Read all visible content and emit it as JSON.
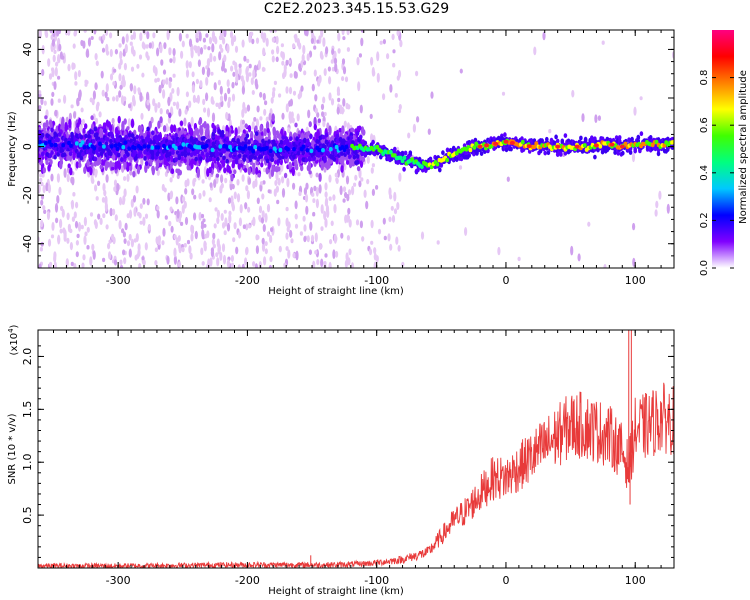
{
  "figure": {
    "title": "C2E2.2023.345.15.53.G29"
  },
  "chart_data": [
    {
      "type": "heatmap",
      "xlabel": "Height of straight line (km)",
      "ylabel": "Frequency (Hz)",
      "xlim": [
        -362,
        130
      ],
      "ylim": [
        -50,
        48
      ],
      "x_ticks": [
        -300,
        -200,
        -100,
        0,
        100
      ],
      "x_tick_labels": [
        "-300",
        "-200",
        "-100",
        "0",
        "100"
      ],
      "y_ticks": [
        -40,
        -20,
        0,
        20,
        40
      ],
      "y_tick_labels": [
        "-40",
        "-20",
        "0",
        "20",
        "40"
      ],
      "colorbar": {
        "label": "Normalized spectral amplitude",
        "range": [
          0,
          1
        ],
        "ticks": [
          0.0,
          0.2,
          0.4,
          0.6,
          0.8
        ],
        "tick_labels": [
          "0.0",
          "0.2",
          "0.4",
          "0.6",
          "0.8"
        ],
        "colormap": [
          "#ffffff",
          "#d9b3f0",
          "#8000ff",
          "#0000ff",
          "#00c8ff",
          "#00ff80",
          "#40ff00",
          "#ffff00",
          "#ff8000",
          "#ff0000",
          "#ff0080"
        ]
      },
      "ridge": {
        "x": [
          -360,
          -300,
          -250,
          -200,
          -150,
          -120,
          -100,
          -80,
          -60,
          -50,
          -40,
          -30,
          -20,
          -10,
          0,
          20,
          40,
          60,
          80,
          90,
          100,
          130
        ],
        "freq": [
          1,
          0,
          0,
          -1,
          -1,
          0,
          -1,
          -5,
          -8,
          -6,
          -3,
          -1,
          0,
          1,
          2,
          0,
          0,
          0,
          1,
          0,
          1,
          1
        ]
      },
      "grid": false
    },
    {
      "type": "line",
      "xlabel": "Height of straight line (km)",
      "ylabel": "SNR (10 * v/v)",
      "y_multiplier": "(x10",
      "y_multiplier_exp": "4",
      "y_multiplier_close": ")",
      "xlim": [
        -362,
        130
      ],
      "ylim": [
        0,
        2.25
      ],
      "x_ticks": [
        -300,
        -200,
        -100,
        0,
        100
      ],
      "x_tick_labels": [
        "-300",
        "-200",
        "-100",
        "0",
        "100"
      ],
      "y_ticks": [
        0.5,
        1.0,
        1.5,
        2.0
      ],
      "y_tick_labels": [
        "0.5",
        "1.0",
        "1.5",
        "2.0"
      ],
      "series": [
        {
          "color": "#e83a3a",
          "trend_x": [
            -362,
            -300,
            -200,
            -150,
            -130,
            -110,
            -100,
            -80,
            -60,
            -50,
            -40,
            -30,
            -20,
            -10,
            0,
            10,
            20,
            30,
            40,
            50,
            60,
            70,
            80,
            90,
            95,
            100,
            110,
            120,
            130
          ],
          "trend_y": [
            0.02,
            0.02,
            0.03,
            0.03,
            0.03,
            0.04,
            0.05,
            0.08,
            0.15,
            0.3,
            0.45,
            0.55,
            0.7,
            0.85,
            0.85,
            0.95,
            1.05,
            1.15,
            1.25,
            1.35,
            1.35,
            1.3,
            1.25,
            1.1,
            0.95,
            1.3,
            1.35,
            1.42,
            1.4
          ],
          "spikes": [
            {
              "x": -151,
              "y": 0.12
            },
            {
              "x": 95,
              "y": 2.25
            },
            {
              "x": 97,
              "y": 2.25
            },
            {
              "x": 96,
              "y": 0.6
            }
          ]
        }
      ],
      "grid": false
    }
  ]
}
